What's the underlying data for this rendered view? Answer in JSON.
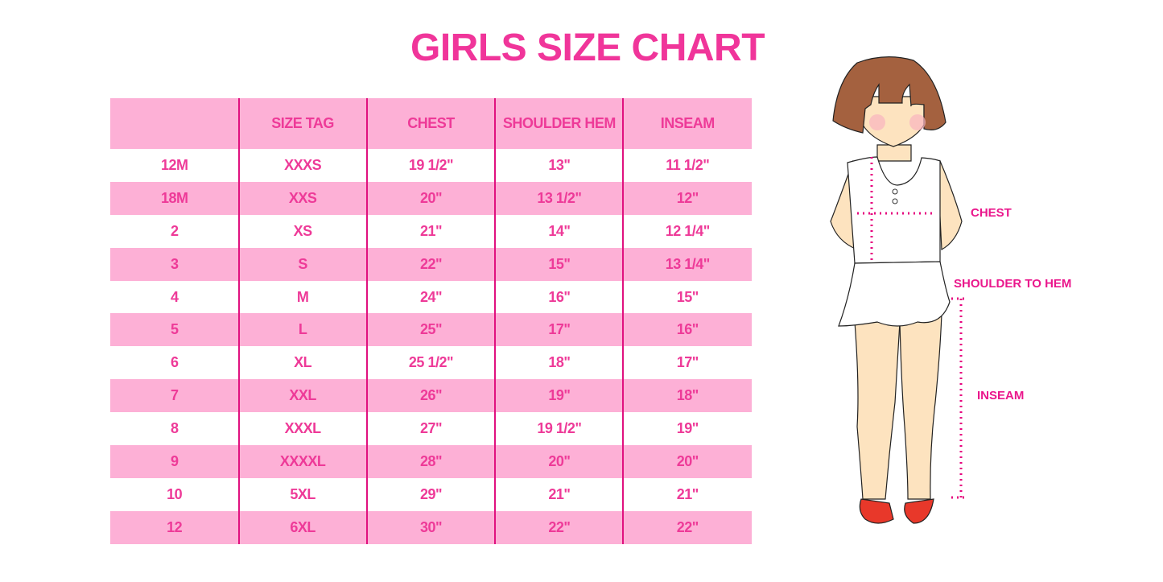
{
  "title": "GIRLS SIZE CHART",
  "table": {
    "headers": [
      "",
      "SIZE TAG",
      "CHEST",
      "SHOULDER HEM",
      "INSEAM"
    ],
    "rows": [
      [
        "12M",
        "XXXS",
        "19 1/2\"",
        "13\"",
        "11 1/2\""
      ],
      [
        "18M",
        "XXS",
        "20\"",
        "13 1/2\"",
        "12\""
      ],
      [
        "2",
        "XS",
        "21\"",
        "14\"",
        "12 1/4\""
      ],
      [
        "3",
        "S",
        "22\"",
        "15\"",
        "13 1/4\""
      ],
      [
        "4",
        "M",
        "24\"",
        "16\"",
        "15\""
      ],
      [
        "5",
        "L",
        "25\"",
        "17\"",
        "16\""
      ],
      [
        "6",
        "XL",
        "25 1/2\"",
        "18\"",
        "17\""
      ],
      [
        "7",
        "XXL",
        "26\"",
        "19\"",
        "18\""
      ],
      [
        "8",
        "XXXL",
        "27\"",
        "19 1/2\"",
        "19\""
      ],
      [
        "9",
        "XXXXL",
        "28\"",
        "20\"",
        "20\""
      ],
      [
        "10",
        "5XL",
        "29\"",
        "21\"",
        "21\""
      ],
      [
        "12",
        "6XL",
        "30\"",
        "22\"",
        "22\""
      ]
    ]
  },
  "figure": {
    "labels": {
      "chest": "CHEST",
      "shoulder_to_hem": "SHOULDER TO HEM",
      "inseam": "INSEAM"
    }
  },
  "colors": {
    "accent": "#ee3a98",
    "row_pink": "#fdb0d6",
    "divider": "#e0117f"
  }
}
